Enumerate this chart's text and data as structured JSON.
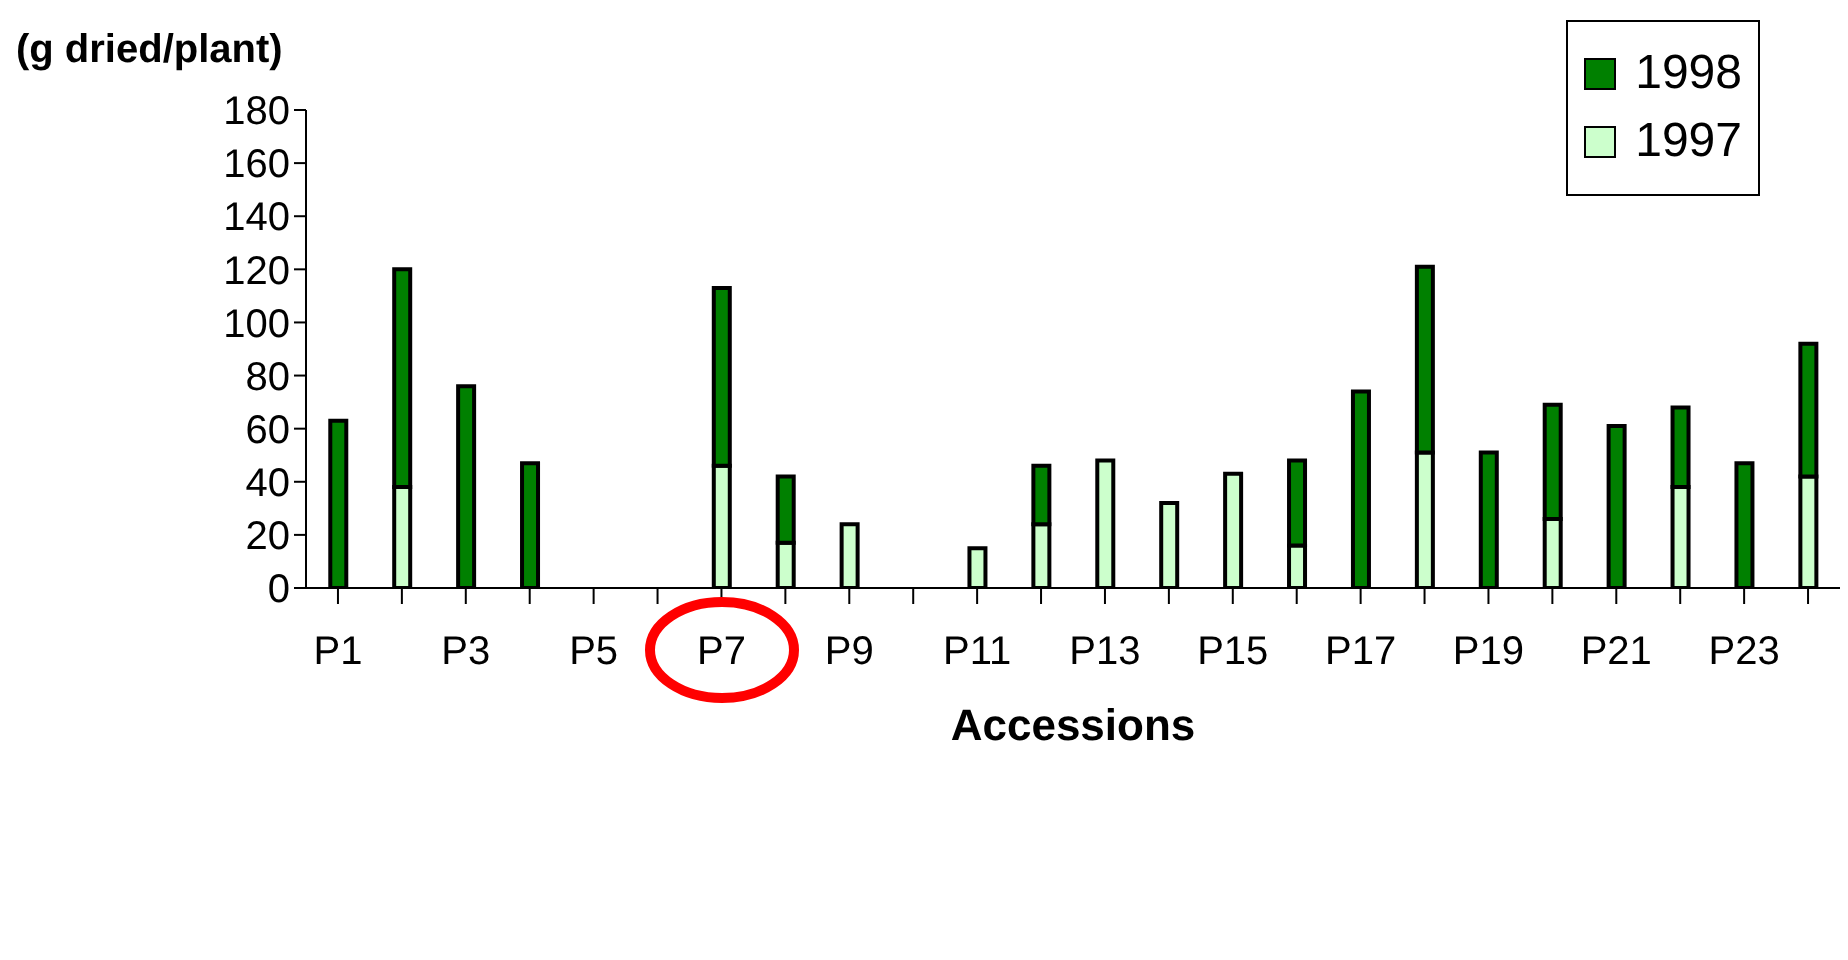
{
  "chart_data": {
    "type": "bar",
    "stacked": true,
    "ylabel": "(g dried/plant)",
    "xlabel": "Accessions",
    "categories": [
      "P1",
      null,
      "P3",
      null,
      "P5",
      null,
      "P7",
      null,
      "P9",
      null,
      "P11",
      null,
      "P13",
      null,
      "P15",
      null,
      "P17",
      null,
      "P19",
      null,
      "P21",
      null,
      "P23",
      null
    ],
    "series": [
      {
        "name": "1997",
        "color": "#ccffcc",
        "values": [
          null,
          38,
          null,
          null,
          null,
          null,
          46,
          17,
          24,
          null,
          15,
          24,
          48,
          32,
          43,
          16,
          null,
          51,
          null,
          26,
          null,
          38,
          null,
          42
        ]
      },
      {
        "name": "1998",
        "color": "#008000",
        "values": [
          63,
          82,
          76,
          47,
          null,
          null,
          67,
          25,
          null,
          null,
          null,
          22,
          null,
          null,
          null,
          32,
          74,
          70,
          51,
          43,
          61,
          30,
          47,
          50
        ]
      }
    ],
    "ylim": [
      0,
      180
    ],
    "yticks": [
      0,
      20,
      40,
      60,
      80,
      100,
      120,
      140,
      160,
      180
    ],
    "grid": false,
    "legend": "top right"
  }
}
